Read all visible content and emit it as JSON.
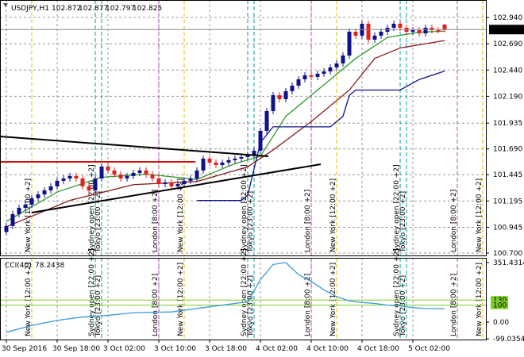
{
  "chart_data": [
    {
      "type": "candlestick",
      "symbol": "USDJPY,H1",
      "up_color": "#10108a",
      "down_color": "#e02020",
      "open": [
        100.9,
        100.957,
        101.07,
        101.13,
        101.16,
        101.221,
        101.258,
        101.296,
        101.334,
        101.387,
        101.409,
        101.432,
        101.409,
        101.334,
        101.296,
        101.409,
        101.522,
        101.485,
        101.447,
        101.409,
        101.432,
        101.462,
        101.485,
        101.447,
        101.409,
        101.356,
        101.371,
        101.334,
        101.356,
        101.387,
        101.409,
        101.485,
        101.598,
        101.56,
        101.537,
        101.56,
        101.583,
        101.598,
        101.613,
        101.635,
        101.673,
        101.862,
        102.05,
        102.201,
        102.163,
        102.239,
        102.292,
        102.352,
        102.39,
        102.375,
        102.405,
        102.427,
        102.465,
        102.503,
        102.578,
        102.804,
        102.767,
        102.88,
        102.729,
        102.767,
        102.804,
        102.842,
        102.88,
        102.842,
        102.804,
        102.819,
        102.789,
        102.842,
        102.819,
        102.872
      ],
      "high": [
        100.987,
        101.1,
        101.16,
        101.19,
        101.251,
        101.288,
        101.326,
        101.364,
        101.417,
        101.439,
        101.462,
        101.462,
        101.439,
        101.364,
        101.439,
        101.552,
        101.552,
        101.515,
        101.477,
        101.462,
        101.492,
        101.515,
        101.515,
        101.477,
        101.439,
        101.401,
        101.401,
        101.386,
        101.417,
        101.439,
        101.515,
        101.628,
        101.628,
        101.59,
        101.59,
        101.613,
        101.628,
        101.643,
        101.665,
        101.703,
        101.892,
        102.08,
        102.231,
        102.231,
        102.269,
        102.322,
        102.382,
        102.42,
        102.42,
        102.435,
        102.457,
        102.495,
        102.533,
        102.608,
        102.834,
        102.834,
        102.91,
        102.91,
        102.797,
        102.834,
        102.872,
        102.91,
        102.91,
        102.872,
        102.849,
        102.849,
        102.872,
        102.872,
        102.849,
        102.877
      ],
      "low": [
        100.87,
        100.927,
        101.04,
        101.1,
        101.13,
        101.191,
        101.228,
        101.266,
        101.304,
        101.357,
        101.379,
        101.379,
        101.304,
        101.266,
        101.266,
        101.379,
        101.455,
        101.417,
        101.379,
        101.379,
        101.402,
        101.432,
        101.417,
        101.379,
        101.326,
        101.326,
        101.304,
        101.304,
        101.326,
        101.357,
        101.379,
        101.455,
        101.53,
        101.507,
        101.507,
        101.53,
        101.553,
        101.568,
        101.583,
        101.605,
        101.643,
        101.832,
        102.02,
        102.133,
        102.133,
        102.209,
        102.262,
        102.322,
        102.345,
        102.345,
        102.375,
        102.397,
        102.435,
        102.473,
        102.548,
        102.737,
        102.737,
        102.699,
        102.699,
        102.737,
        102.774,
        102.812,
        102.812,
        102.774,
        102.774,
        102.759,
        102.759,
        102.789,
        102.789,
        102.797
      ],
      "close": [
        100.957,
        101.07,
        101.13,
        101.16,
        101.221,
        101.258,
        101.296,
        101.334,
        101.387,
        101.409,
        101.432,
        101.409,
        101.334,
        101.296,
        101.409,
        101.522,
        101.485,
        101.447,
        101.409,
        101.432,
        101.462,
        101.485,
        101.447,
        101.409,
        101.356,
        101.371,
        101.334,
        101.356,
        101.387,
        101.409,
        101.485,
        101.598,
        101.56,
        101.537,
        101.56,
        101.583,
        101.598,
        101.613,
        101.635,
        101.673,
        101.862,
        102.05,
        102.201,
        102.163,
        102.239,
        102.292,
        102.352,
        102.39,
        102.375,
        102.405,
        102.427,
        102.465,
        102.503,
        102.578,
        102.804,
        102.767,
        102.88,
        102.729,
        102.767,
        102.804,
        102.842,
        102.88,
        102.842,
        102.804,
        102.819,
        102.789,
        102.842,
        102.819,
        102.804,
        102.825
      ],
      "lines": [
        {
          "color": "#2e9a2e",
          "x": [
            0,
            8,
            15,
            22,
            30,
            36,
            40,
            44,
            50,
            55,
            60,
            65,
            69
          ],
          "values": [
            101.0,
            101.28,
            101.42,
            101.45,
            101.4,
            101.55,
            101.62,
            102.0,
            102.3,
            102.55,
            102.75,
            102.8,
            102.81
          ]
        },
        {
          "color": "#8b1a1a",
          "x": [
            0,
            10,
            20,
            30,
            38,
            42,
            48,
            54,
            58,
            62,
            69
          ],
          "values": [
            100.95,
            101.2,
            101.35,
            101.38,
            101.52,
            101.68,
            101.95,
            102.25,
            102.55,
            102.65,
            102.72
          ]
        },
        {
          "color": "#10108a",
          "x": [
            30,
            37,
            38,
            39,
            40,
            42,
            51,
            53,
            54,
            55,
            62,
            65,
            69
          ],
          "values": [
            101.2,
            101.2,
            101.25,
            101.5,
            101.75,
            101.9,
            101.9,
            102.0,
            102.2,
            102.25,
            102.25,
            102.35,
            102.43
          ]
        }
      ],
      "ylim": [
        100.677,
        103.106
      ],
      "yticks": [
        {
          "value": 102.94,
          "label": "102.940"
        },
        {
          "value": 102.69,
          "label": "102.690"
        },
        {
          "value": 102.44,
          "label": "102.440"
        },
        {
          "value": 102.19,
          "label": "102.190"
        },
        {
          "value": 101.935,
          "label": "101.935"
        },
        {
          "value": 101.69,
          "label": "101.690"
        },
        {
          "value": 101.445,
          "label": "101.445"
        },
        {
          "value": 101.195,
          "label": "101.195"
        },
        {
          "value": 100.945,
          "label": "100.945"
        },
        {
          "value": 100.7,
          "label": "100.700"
        }
      ],
      "xticks": [
        {
          "value": 0,
          "label": "30 Sep 2016"
        },
        {
          "value": 8,
          "label": "30 Sep 18:00"
        },
        {
          "value": 16,
          "label": "3 Oct 02:00"
        },
        {
          "value": 24,
          "label": "3 Oct 10:00"
        },
        {
          "value": 32,
          "label": "3 Oct 18:00"
        },
        {
          "value": 40,
          "label": "4 Oct 02:00"
        },
        {
          "value": 48,
          "label": "4 Oct 10:00"
        },
        {
          "value": 56,
          "label": "4 Oct 18:00"
        },
        {
          "value": 64,
          "label": "5 Oct 02:00"
        }
      ],
      "sessions": [
        {
          "index": 4,
          "label": "New York [12:00 +2]",
          "color": "#e0c000"
        },
        {
          "index": 14,
          "label": "Sydney open [22:00 +2]",
          "color": "#00a0a0"
        },
        {
          "index": 15,
          "label": "Tokyo [23:00 +2]",
          "color": "#00a0a0"
        },
        {
          "index": 24,
          "label": "London [8:00 +2]",
          "color": "#c040c0"
        },
        {
          "index": 28,
          "label": "New York [12:00 +2]",
          "color": "#e0c000"
        },
        {
          "index": 38,
          "label": "Sydney open [22:00 +2]",
          "color": "#00a0a0"
        },
        {
          "index": 39,
          "label": "Tokyo [23:00 +2]",
          "color": "#00a0a0"
        },
        {
          "index": 48,
          "label": "London [8:00 +2]",
          "color": "#c040c0"
        },
        {
          "index": 52,
          "label": "New York [12:00 +2]",
          "color": "#e0c000"
        },
        {
          "index": 62,
          "label": "Sydney open [22:00 +2]",
          "color": "#00a0a0"
        },
        {
          "index": 63,
          "label": "Tokyo [23:00 +2]",
          "color": "#00a0a0"
        },
        {
          "index": 71,
          "label": "London [8:00 +2]",
          "color": "#c040c0"
        },
        {
          "index": 75,
          "label": "New York [12:00 +2]",
          "color": "#e0c000"
        }
      ],
      "grid": true
    },
    {
      "type": "line",
      "indicator": "CCI(40)",
      "color": "#3a9ad9",
      "x": [
        0,
        4,
        8,
        12,
        16,
        20,
        26,
        30,
        34,
        38,
        40,
        42,
        44,
        46,
        48,
        50,
        52,
        54,
        56,
        58,
        60,
        62,
        64,
        66,
        69
      ],
      "values": [
        -60,
        -20,
        10,
        30,
        40,
        55,
        60,
        80,
        100,
        120,
        250,
        340,
        351.4314,
        280,
        240,
        190,
        150,
        125,
        115,
        110,
        100,
        95,
        85,
        80,
        78.2438
      ],
      "ylim": [
        -103,
        379
      ],
      "yticks": [
        351.4314,
        {
          "value": 0,
          "label": "0.00"
        },
        -99.0354
      ],
      "levels": [
        130,
        100
      ],
      "level_color": "#7ccd2a"
    }
  ]
}
